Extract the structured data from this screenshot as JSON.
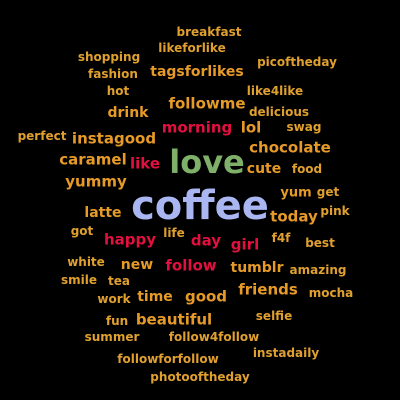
{
  "colors": {
    "background": "#000000",
    "accent_blue": "#a9b6f2",
    "accent_green": "#7fb069",
    "red": "#e0103f",
    "orange": "#e69a28",
    "gold": "#e0a030"
  },
  "words": [
    {
      "text": "coffee",
      "color": "#a9b6f2"
    },
    {
      "text": "love",
      "color": "#7fb069"
    },
    {
      "text": "morning",
      "color": "#e0103f"
    },
    {
      "text": "chocolate",
      "color": "#e69a28"
    },
    {
      "text": "followme",
      "color": "#e69a28"
    },
    {
      "text": "instagood",
      "color": "#e69a28"
    },
    {
      "text": "tagsforlikes",
      "color": "#e69a28"
    },
    {
      "text": "caramel",
      "color": "#e69a28"
    },
    {
      "text": "like",
      "color": "#e0103f"
    },
    {
      "text": "yummy",
      "color": "#e69a28"
    },
    {
      "text": "happy",
      "color": "#e0103f"
    },
    {
      "text": "day",
      "color": "#e0103f"
    },
    {
      "text": "girl",
      "color": "#e0103f"
    },
    {
      "text": "follow",
      "color": "#e0103f"
    },
    {
      "text": "today",
      "color": "#e69a28"
    },
    {
      "text": "latte",
      "color": "#e69a28"
    },
    {
      "text": "tumblr",
      "color": "#e69a28"
    },
    {
      "text": "friends",
      "color": "#e69a28"
    },
    {
      "text": "good",
      "color": "#e69a28"
    },
    {
      "text": "beautiful",
      "color": "#e69a28"
    },
    {
      "text": "time",
      "color": "#e69a28"
    },
    {
      "text": "new",
      "color": "#e69a28"
    },
    {
      "text": "drink",
      "color": "#e69a28"
    },
    {
      "text": "lol",
      "color": "#e69a28"
    },
    {
      "text": "cute",
      "color": "#e69a28"
    },
    {
      "text": "yum",
      "color": "#e69a28"
    },
    {
      "text": "breakfast",
      "color": "#e0a030"
    },
    {
      "text": "likeforlike",
      "color": "#e0a030"
    },
    {
      "text": "shopping",
      "color": "#e0a030"
    },
    {
      "text": "picoftheday",
      "color": "#e0a030"
    },
    {
      "text": "fashion",
      "color": "#e0a030"
    },
    {
      "text": "hot",
      "color": "#e0a030"
    },
    {
      "text": "like4like",
      "color": "#e0a030"
    },
    {
      "text": "delicious",
      "color": "#e0a030"
    },
    {
      "text": "perfect",
      "color": "#e0a030"
    },
    {
      "text": "swag",
      "color": "#e0a030"
    },
    {
      "text": "food",
      "color": "#e0a030"
    },
    {
      "text": "get",
      "color": "#e0a030"
    },
    {
      "text": "pink",
      "color": "#e0a030"
    },
    {
      "text": "got",
      "color": "#e0a030"
    },
    {
      "text": "life",
      "color": "#e0a030"
    },
    {
      "text": "f4f",
      "color": "#e0a030"
    },
    {
      "text": "best",
      "color": "#e0a030"
    },
    {
      "text": "white",
      "color": "#e0a030"
    },
    {
      "text": "tea",
      "color": "#e0a030"
    },
    {
      "text": "smile",
      "color": "#e0a030"
    },
    {
      "text": "amazing",
      "color": "#e0a030"
    },
    {
      "text": "work",
      "color": "#e0a030"
    },
    {
      "text": "mocha",
      "color": "#e0a030"
    },
    {
      "text": "fun",
      "color": "#e0a030"
    },
    {
      "text": "selfie",
      "color": "#e0a030"
    },
    {
      "text": "summer",
      "color": "#e0a030"
    },
    {
      "text": "follow4follow",
      "color": "#e0a030"
    },
    {
      "text": "followforfollow",
      "color": "#e0a030"
    },
    {
      "text": "instadaily",
      "color": "#e0a030"
    },
    {
      "text": "photooftheday",
      "color": "#e0a030"
    }
  ]
}
